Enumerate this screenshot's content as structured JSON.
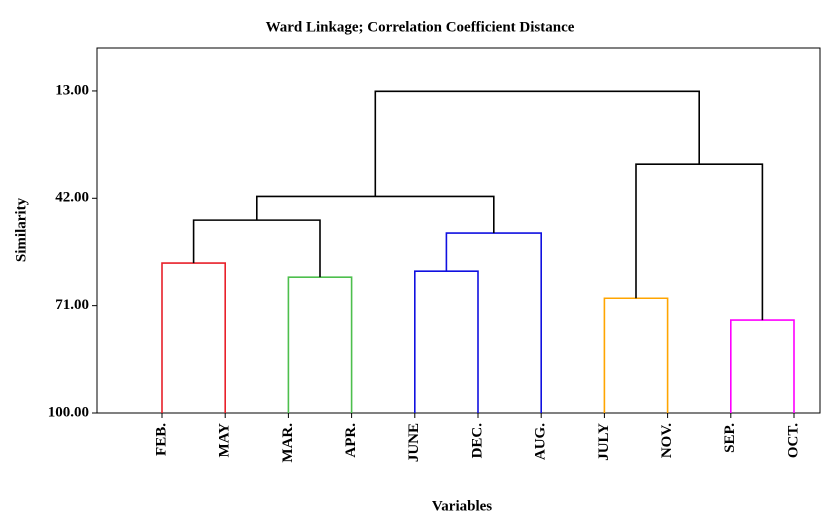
{
  "chart_data": {
    "type": "dendrogram",
    "title": "Ward Linkage; Correlation Coefficient Distance",
    "y_label": "Similarity",
    "x_label": "Variables",
    "categories": [
      "FEB.",
      "MAY",
      "MAR.",
      "APR.",
      "JUNE",
      "DEC.",
      "AUG.",
      "JULY",
      "NOV.",
      "SEP.",
      "OCT."
    ],
    "merges": [
      {
        "children": [
          0,
          1
        ],
        "height": 59.5,
        "color": "#e8202a"
      },
      {
        "children": [
          2,
          3
        ],
        "height": 63.3,
        "color": "#4dbf4d"
      },
      {
        "children": [
          4,
          5
        ],
        "height": 61.7,
        "color": "#1010e0"
      },
      {
        "children": [
          13,
          6
        ],
        "height": 51.4,
        "color": "#1010e0"
      },
      {
        "children": [
          11,
          12
        ],
        "height": 47.9,
        "color": "#000000"
      },
      {
        "children": [
          15,
          14
        ],
        "height": 41.5,
        "color": "#000000"
      },
      {
        "children": [
          7,
          8
        ],
        "height": 69.0,
        "color": "#ffa500"
      },
      {
        "children": [
          9,
          10
        ],
        "height": 74.9,
        "color": "#ff00ff"
      },
      {
        "children": [
          17,
          18
        ],
        "height": 32.8,
        "color": "#000000"
      },
      {
        "children": [
          16,
          19
        ],
        "height": 13.1,
        "color": "#000000"
      }
    ],
    "ylim": [
      100,
      1.4
    ],
    "yticks": [
      {
        "value": 13,
        "label": "13.00"
      },
      {
        "value": 42,
        "label": "42.00"
      },
      {
        "value": 71,
        "label": "71.00"
      },
      {
        "value": 100,
        "label": "100.00"
      }
    ]
  }
}
